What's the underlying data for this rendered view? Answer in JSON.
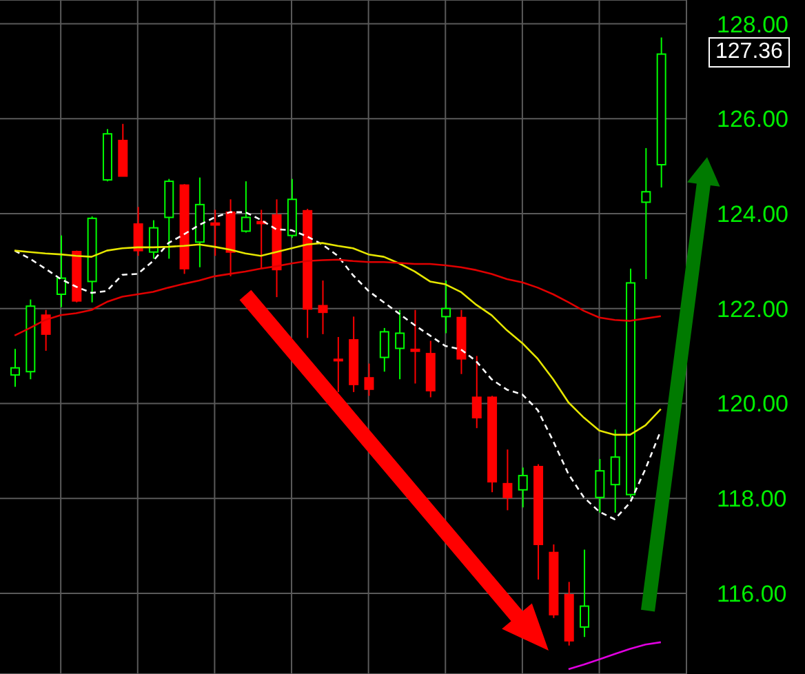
{
  "chart_data": {
    "type": "candlestick",
    "categories": [
      null,
      null,
      null,
      null,
      null,
      null,
      null,
      null,
      null,
      null,
      null,
      null,
      null,
      null,
      null,
      null,
      null,
      null,
      null,
      null,
      null,
      null,
      null,
      null,
      null,
      null,
      null,
      null,
      null,
      null,
      null,
      null,
      null,
      null,
      null,
      null,
      null,
      null,
      null,
      null,
      null,
      null,
      null
    ],
    "ohlc": [
      [
        120.6,
        121.15,
        120.35,
        120.75
      ],
      [
        120.67,
        122.19,
        120.51,
        122.05
      ],
      [
        121.86,
        121.97,
        121.11,
        121.46
      ],
      [
        122.3,
        123.54,
        122.03,
        122.64
      ],
      [
        123.2,
        123.22,
        122.13,
        122.16
      ],
      [
        122.57,
        123.94,
        122.13,
        123.9
      ],
      [
        124.71,
        125.78,
        124.68,
        125.68
      ],
      [
        125.54,
        125.89,
        124.79,
        124.79
      ],
      [
        123.78,
        124.14,
        123.11,
        123.22
      ],
      [
        123.19,
        123.86,
        123.05,
        123.7
      ],
      [
        123.92,
        124.73,
        123.05,
        124.68
      ],
      [
        124.6,
        124.62,
        122.73,
        122.84
      ],
      [
        123.4,
        124.76,
        122.87,
        124.19
      ],
      [
        123.8,
        124.08,
        123.11,
        123.76
      ],
      [
        124.03,
        124.3,
        122.68,
        123.19
      ],
      [
        123.63,
        124.68,
        123.6,
        123.92
      ],
      [
        123.83,
        124.08,
        122.84,
        123.79
      ],
      [
        123.97,
        124.3,
        122.24,
        122.82
      ],
      [
        123.54,
        124.73,
        123.49,
        124.3
      ],
      [
        124.06,
        124.1,
        121.38,
        121.99
      ],
      [
        122.06,
        122.59,
        121.46,
        121.92
      ],
      [
        120.93,
        121.4,
        120.24,
        120.9
      ],
      [
        121.34,
        121.83,
        120.24,
        120.4
      ],
      [
        120.54,
        120.84,
        120.16,
        120.3
      ],
      [
        120.97,
        121.59,
        120.67,
        121.51
      ],
      [
        121.16,
        121.97,
        120.51,
        121.48
      ],
      [
        121.14,
        121.97,
        120.42,
        121.1
      ],
      [
        121.05,
        121.32,
        120.13,
        120.27
      ],
      [
        121.83,
        122.59,
        121.48,
        122.0
      ],
      [
        121.81,
        121.97,
        120.62,
        120.94
      ],
      [
        120.13,
        121.0,
        119.48,
        119.7
      ],
      [
        120.13,
        120.16,
        118.13,
        118.35
      ],
      [
        118.31,
        119.03,
        117.75,
        118.02
      ],
      [
        118.18,
        118.65,
        117.81,
        118.48
      ],
      [
        118.67,
        118.72,
        116.29,
        117.03
      ],
      [
        116.86,
        117.03,
        115.48,
        115.55
      ],
      [
        115.97,
        116.24,
        114.9,
        115.0
      ],
      [
        115.29,
        116.92,
        115.08,
        115.73
      ],
      [
        118.02,
        118.83,
        117.7,
        118.58
      ],
      [
        118.29,
        119.45,
        117.7,
        118.87
      ],
      [
        118.08,
        122.84,
        118.02,
        122.54
      ],
      [
        124.24,
        125.38,
        122.62,
        124.46
      ],
      [
        125.03,
        127.71,
        124.55,
        127.36
      ]
    ],
    "colors": [
      "#00ff00",
      "#00ff00",
      "#ff0000",
      "#00ff00",
      "#ff0000",
      "#00ff00",
      "#00ff00",
      "#ff0000",
      "#ff0000",
      "#00ff00",
      "#00ff00",
      "#ff0000",
      "#00ff00",
      "#ff0000",
      "#ff0000",
      "#00ff00",
      "#ff0000",
      "#ff0000",
      "#00ff00",
      "#ff0000",
      "#ff0000",
      "#ff0000",
      "#ff0000",
      "#ff0000",
      "#00ff00",
      "#00ff00",
      "#ff0000",
      "#ff0000",
      "#00ff00",
      "#ff0000",
      "#ff0000",
      "#ff0000",
      "#ff0000",
      "#00ff00",
      "#ff0000",
      "#ff0000",
      "#ff0000",
      "#00ff00",
      "#00ff00",
      "#00ff00",
      "#00ff00",
      "#00ff00",
      "#00ff00"
    ],
    "series": [
      {
        "type": "line",
        "color": "#ffffff",
        "line_style": "dashed",
        "values": [
          123.22,
          123.05,
          122.84,
          122.62,
          122.46,
          122.33,
          122.37,
          122.71,
          122.73,
          123.0,
          123.38,
          123.56,
          123.76,
          123.92,
          124.03,
          124.03,
          123.87,
          123.67,
          123.65,
          123.52,
          123.35,
          123.11,
          122.7,
          122.37,
          122.13,
          121.89,
          121.65,
          121.43,
          121.21,
          121.14,
          120.89,
          120.51,
          120.29,
          120.19,
          119.86,
          119.21,
          118.51,
          118.02,
          117.72,
          117.56,
          117.91,
          118.62,
          119.43
        ]
      },
      {
        "type": "line",
        "color": "#e6e600",
        "line_style": "solid",
        "values": [
          123.22,
          123.19,
          123.16,
          123.14,
          123.11,
          123.09,
          123.22,
          123.27,
          123.29,
          123.29,
          123.3,
          123.32,
          123.35,
          123.3,
          123.24,
          123.16,
          123.11,
          123.19,
          123.27,
          123.35,
          123.38,
          123.32,
          123.27,
          123.14,
          123.09,
          122.95,
          122.78,
          122.57,
          122.51,
          122.35,
          122.08,
          121.86,
          121.54,
          121.27,
          120.94,
          120.51,
          120.02,
          119.7,
          119.43,
          119.34,
          119.34,
          119.54,
          119.88
        ]
      },
      {
        "type": "line",
        "color": "#e00000",
        "line_style": "solid",
        "values": [
          121.43,
          121.59,
          121.76,
          121.86,
          121.9,
          121.97,
          122.14,
          122.25,
          122.3,
          122.35,
          122.44,
          122.52,
          122.59,
          122.68,
          122.73,
          122.78,
          122.84,
          122.89,
          122.95,
          123.0,
          123.02,
          123.03,
          123.0,
          122.98,
          122.98,
          122.96,
          122.94,
          122.94,
          122.91,
          122.87,
          122.81,
          122.73,
          122.62,
          122.55,
          122.44,
          122.3,
          122.13,
          121.95,
          121.81,
          121.76,
          121.74,
          121.79,
          121.84
        ]
      },
      {
        "type": "line",
        "color": "#e000e0",
        "line_style": "solid",
        "values": [
          null,
          null,
          null,
          null,
          null,
          null,
          null,
          null,
          null,
          null,
          null,
          null,
          null,
          null,
          null,
          null,
          null,
          null,
          null,
          null,
          null,
          null,
          null,
          null,
          null,
          null,
          null,
          null,
          null,
          null,
          null,
          null,
          null,
          null,
          null,
          null,
          114.4,
          114.5,
          114.61,
          114.72,
          114.83,
          114.92,
          114.97
        ]
      }
    ],
    "ylim": [
      114.3,
      128.5
    ],
    "yticks": [
      {
        "value": 116,
        "label": "116.00"
      },
      {
        "value": 118,
        "label": "118.00"
      },
      {
        "value": 120,
        "label": "120.00"
      },
      {
        "value": 122,
        "label": "122.00"
      },
      {
        "value": 124,
        "label": "124.00"
      },
      {
        "value": 126,
        "label": "126.00"
      },
      {
        "value": 128,
        "label": "128.00"
      }
    ],
    "annotations": [
      "127.36"
    ],
    "grid": true,
    "tick_labels": "y",
    "marker": "none"
  }
}
